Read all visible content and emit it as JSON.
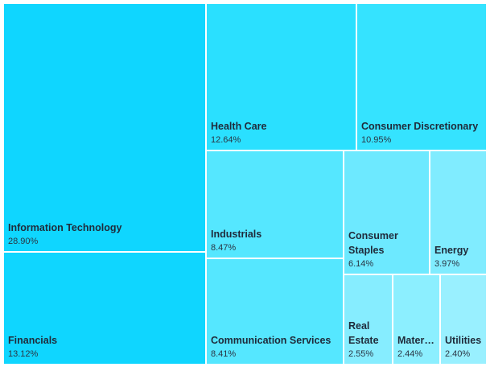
{
  "chart_data": {
    "type": "treemap",
    "title": "",
    "items": [
      {
        "name": "Information Technology",
        "value": 28.9,
        "value_label": "28.90%",
        "color": "#0fd6ff"
      },
      {
        "name": "Financials",
        "value": 13.12,
        "value_label": "13.12%",
        "color": "#0fd6ff"
      },
      {
        "name": "Health Care",
        "value": 12.64,
        "value_label": "12.64%",
        "color": "#2ae0ff"
      },
      {
        "name": "Consumer Discretionary",
        "value": 10.95,
        "value_label": "10.95%",
        "color": "#35e3ff"
      },
      {
        "name": "Industrials",
        "value": 8.47,
        "value_label": "8.47%",
        "color": "#55e7ff"
      },
      {
        "name": "Communication Services",
        "value": 8.41,
        "value_label": "8.41%",
        "color": "#55e7ff"
      },
      {
        "name": "Consumer\nStaples",
        "value": 6.14,
        "value_label": "6.14%",
        "color": "#6de9ff"
      },
      {
        "name": "Energy",
        "value": 3.97,
        "value_label": "3.97%",
        "color": "#80ecff"
      },
      {
        "name": "Real\nEstate",
        "value": 2.55,
        "value_label": "2.55%",
        "color": "#86edff"
      },
      {
        "name": "Materi…",
        "value": 2.44,
        "value_label": "2.44%",
        "color": "#8cefff"
      },
      {
        "name": "Utilities",
        "value": 2.4,
        "value_label": "2.40%",
        "color": "#99f0ff"
      }
    ]
  }
}
